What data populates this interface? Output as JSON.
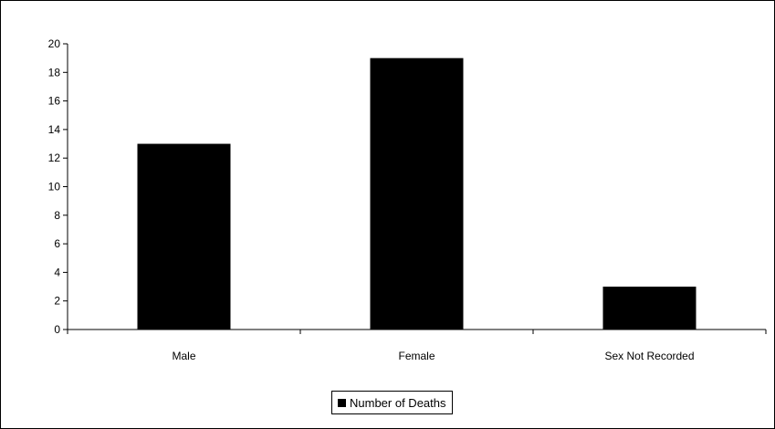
{
  "chart_data": {
    "type": "bar",
    "categories": [
      "Male",
      "Female",
      "Sex Not Recorded"
    ],
    "series": [
      {
        "name": "Number of Deaths",
        "values": [
          13,
          19,
          3
        ],
        "color": "#000000"
      }
    ],
    "ylim": [
      0,
      20
    ],
    "y_ticks": [
      0,
      2,
      4,
      6,
      8,
      10,
      12,
      14,
      16,
      18,
      20
    ],
    "grid": false,
    "legend_position": "bottom"
  }
}
